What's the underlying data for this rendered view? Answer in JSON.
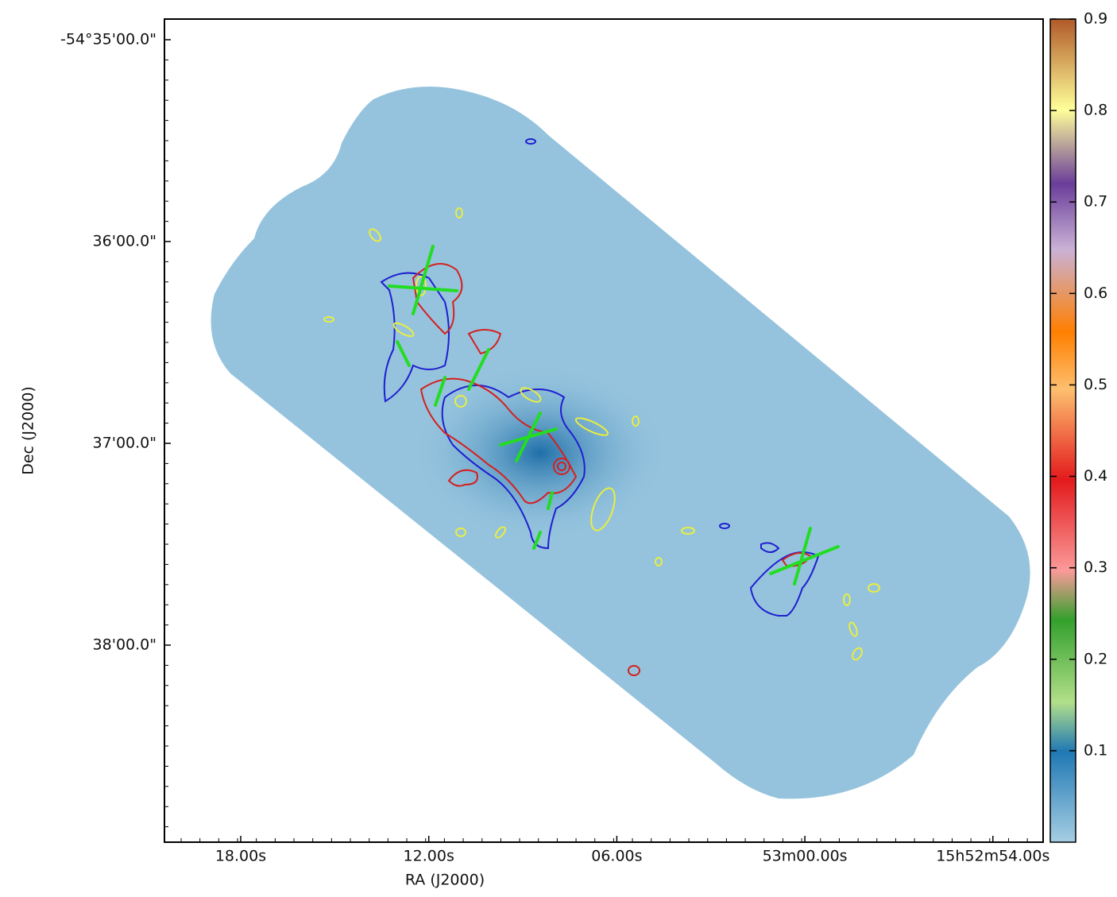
{
  "chart_data": {
    "type": "image",
    "x_label": "RA (J2000)",
    "y_label": "Dec (J2000)",
    "xtick_labels": [
      "18.00s",
      "12.00s",
      "06.00s",
      "53m00.00s",
      "15h52m54.00s"
    ],
    "ytick_labels": [
      "-54°35'00.0\"",
      "36'00.0\"",
      "37'00.0\"",
      "38'00.0\""
    ],
    "colorbar": {
      "lim": [
        0,
        0.9
      ],
      "ticks": [
        0.1,
        0.2,
        0.3,
        0.4,
        0.5,
        0.6,
        0.7,
        0.8,
        0.9
      ]
    }
  }
}
